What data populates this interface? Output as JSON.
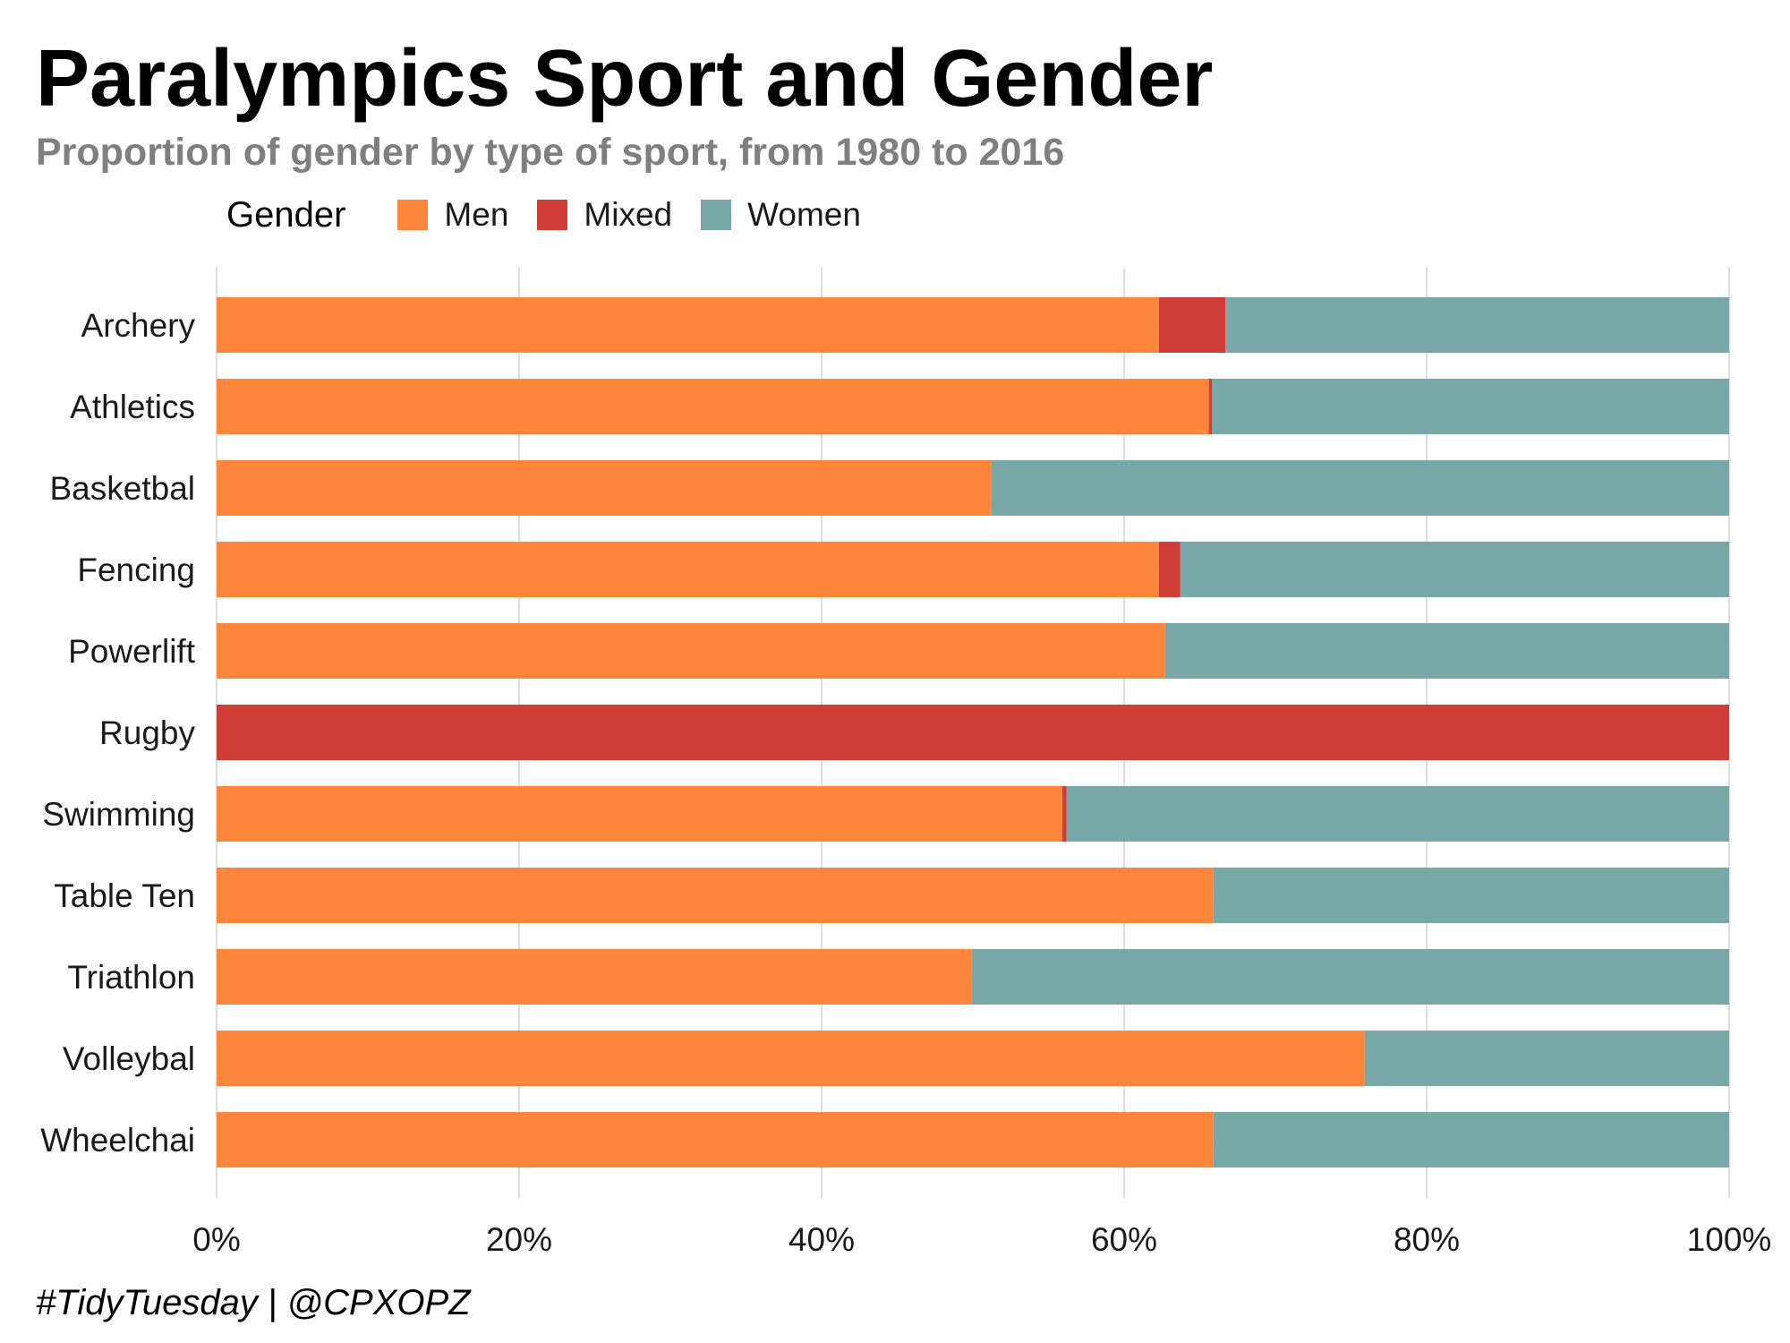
{
  "colors": {
    "Men": "#ff863a",
    "Mixed": "#d13d37",
    "Women": "#78a8a8",
    "grid": "#dedede"
  },
  "chart_data": {
    "type": "bar",
    "orientation": "horizontal",
    "stacked": true,
    "normalized": true,
    "title": "Paralympics Sport and Gender",
    "subtitle": "Proportion of gender by type of sport, from 1980 to 2016",
    "caption": "#TidyTuesday | @CPXOPZ",
    "legend": {
      "title": "Gender",
      "position": "top",
      "entries": [
        "Men",
        "Mixed",
        "Women"
      ]
    },
    "categories": [
      "Archery",
      "Athletics",
      "Basketbal",
      "Fencing",
      "Powerlift",
      "Rugby",
      "Swimming",
      "Table Ten",
      "Triathlon",
      "Volleybal",
      "Wheelchai"
    ],
    "series": [
      {
        "name": "Men",
        "values": [
          0.623,
          0.656,
          0.512,
          0.623,
          0.627,
          0.0,
          0.559,
          0.659,
          0.499,
          0.759,
          0.659
        ]
      },
      {
        "name": "Mixed",
        "values": [
          0.044,
          0.002,
          0.0,
          0.014,
          0.0,
          1.0,
          0.003,
          0.0,
          0.0,
          0.0,
          0.0
        ]
      },
      {
        "name": "Women",
        "values": [
          0.333,
          0.342,
          0.488,
          0.363,
          0.373,
          0.0,
          0.438,
          0.341,
          0.501,
          0.241,
          0.341
        ]
      }
    ],
    "xlim": [
      0,
      1
    ],
    "xticks": [
      0,
      0.2,
      0.4,
      0.6,
      0.8,
      1.0
    ],
    "xtick_labels": [
      "0%",
      "20%",
      "40%",
      "60%",
      "80%",
      "100%"
    ],
    "xlabel": "",
    "ylabel": "",
    "grid": "vertical"
  }
}
